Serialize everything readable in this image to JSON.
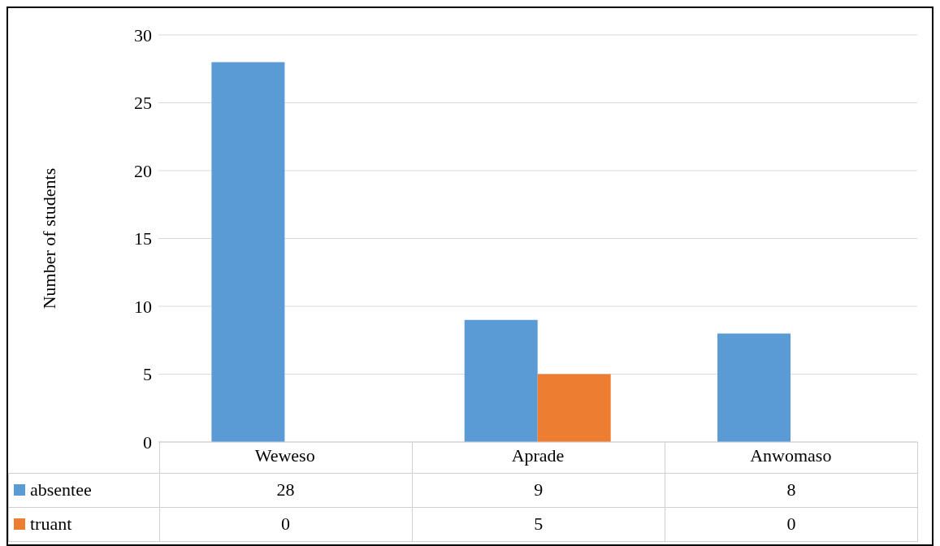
{
  "chart_data": {
    "type": "bar",
    "ylabel": "Number of students",
    "categories": [
      "Weweso",
      "Aprade",
      "Anwomaso"
    ],
    "series": [
      {
        "name": "absentee",
        "color": "#5b9bd5",
        "values": [
          28,
          9,
          8
        ]
      },
      {
        "name": "truant",
        "color": "#ed7d31",
        "values": [
          0,
          5,
          0
        ]
      }
    ],
    "ylim": [
      0,
      30
    ],
    "yticks": [
      0,
      5,
      10,
      15,
      20,
      25,
      30
    ],
    "grid": "y",
    "legend": "bottom",
    "data_labels": true
  }
}
